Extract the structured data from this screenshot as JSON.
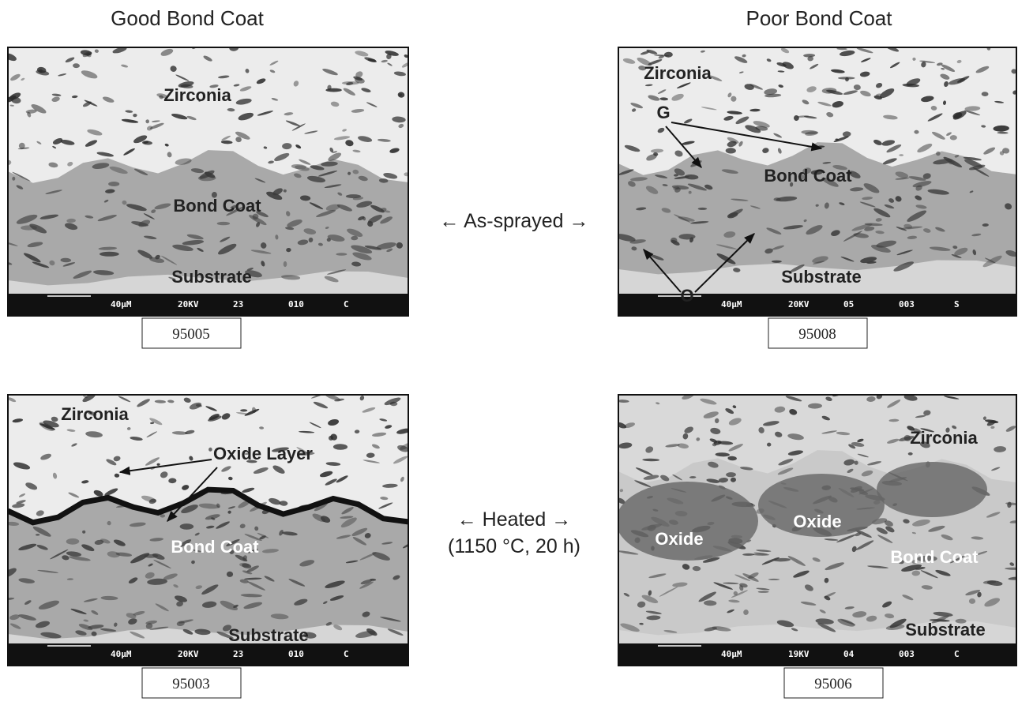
{
  "column_titles": [
    "Good Bond Coat",
    "Poor Bond Coat"
  ],
  "row_labels": [
    {
      "text": "← As-sprayed →"
    },
    {
      "text": "← Heated →",
      "condition": "(1150 °C, 20 h)"
    }
  ],
  "panels": [
    {
      "labels": [
        "Zirconia",
        "Bond Coat",
        "Substrate"
      ],
      "info_bar": [
        "40µM",
        "20KV",
        "23",
        "010",
        "C"
      ],
      "caption": "95005"
    },
    {
      "labels": [
        "Zirconia",
        "G",
        "Bond Coat",
        "O",
        "Substrate"
      ],
      "info_bar": [
        "40µM",
        "20KV",
        "05",
        "003",
        "S"
      ],
      "caption": "95008"
    },
    {
      "labels": [
        "Zirconia",
        "Oxide Layer",
        "Bond Coat",
        "Substrate"
      ],
      "info_bar": [
        "40µM",
        "20KV",
        "23",
        "010",
        "C"
      ],
      "caption": "95003"
    },
    {
      "labels": [
        "Zirconia",
        "Oxide",
        "Oxide",
        "Bond Coat",
        "Substrate"
      ],
      "info_bar": [
        "40µM",
        "19KV",
        "04",
        "003",
        "C"
      ],
      "caption": "95006"
    }
  ]
}
